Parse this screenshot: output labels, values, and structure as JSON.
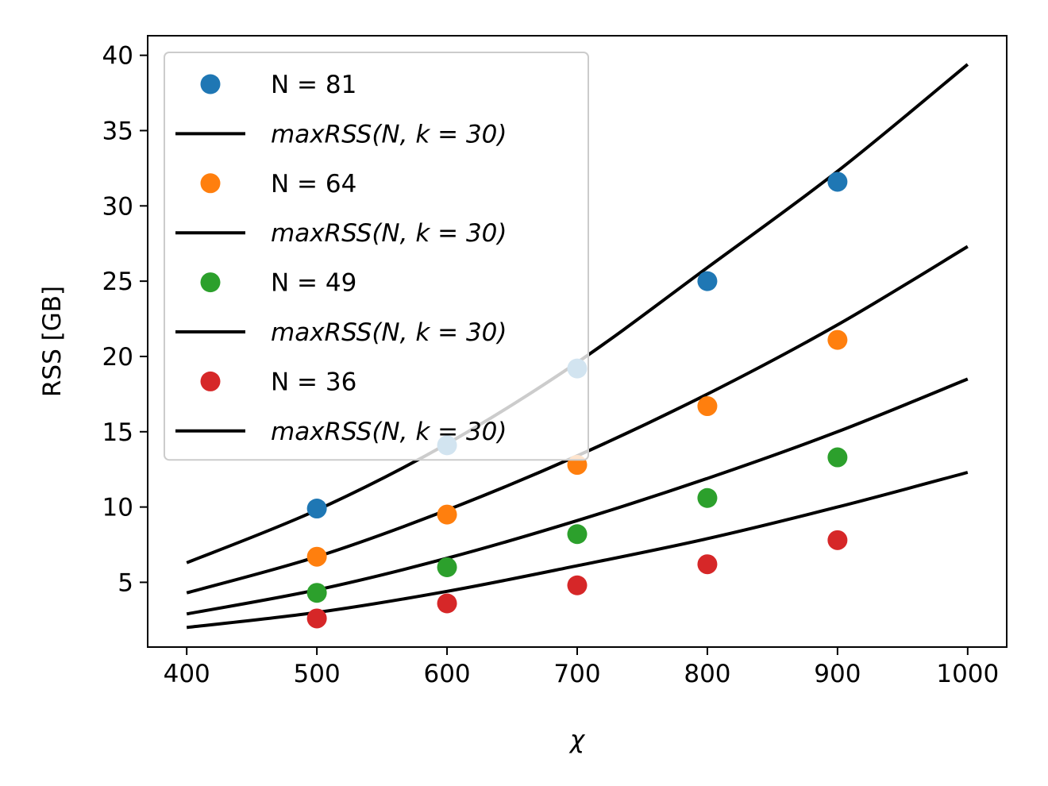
{
  "chart_data": {
    "type": "scatter",
    "xlabel": "χ",
    "ylabel": "RSS [GB]",
    "xlim": [
      370,
      1030
    ],
    "ylim": [
      0.7,
      41.3
    ],
    "xticks": [
      400,
      500,
      600,
      700,
      800,
      900,
      1000
    ],
    "yticks": [
      5,
      10,
      15,
      20,
      25,
      30,
      35,
      40
    ],
    "grid": false,
    "legend_position": "upper-left",
    "series": [
      {
        "name": "N = 81",
        "color": "#1f77b4",
        "points": [
          [
            500,
            9.9
          ],
          [
            600,
            14.1
          ],
          [
            700,
            19.2
          ],
          [
            800,
            25.0
          ],
          [
            900,
            31.6
          ]
        ],
        "fit_label": "maxRSS(N, k = 30)",
        "fit": [
          [
            400,
            6.3
          ],
          [
            500,
            9.8
          ],
          [
            600,
            14.2
          ],
          [
            700,
            19.6
          ],
          [
            800,
            25.9
          ],
          [
            900,
            32.3
          ],
          [
            1000,
            39.4
          ]
        ]
      },
      {
        "name": "N = 64",
        "color": "#ff7f0e",
        "points": [
          [
            500,
            6.7
          ],
          [
            600,
            9.5
          ],
          [
            700,
            12.8
          ],
          [
            800,
            16.7
          ],
          [
            900,
            21.1
          ]
        ],
        "fit_label": "maxRSS(N, k = 30)",
        "fit": [
          [
            400,
            4.3
          ],
          [
            500,
            6.7
          ],
          [
            600,
            9.8
          ],
          [
            700,
            13.4
          ],
          [
            800,
            17.5
          ],
          [
            900,
            22.1
          ],
          [
            1000,
            27.3
          ]
        ]
      },
      {
        "name": "N = 49",
        "color": "#2ca02c",
        "points": [
          [
            500,
            4.3
          ],
          [
            600,
            6.0
          ],
          [
            700,
            8.2
          ],
          [
            800,
            10.6
          ],
          [
            900,
            13.3
          ]
        ],
        "fit_label": "maxRSS(N, k = 30)",
        "fit": [
          [
            400,
            2.9
          ],
          [
            500,
            4.5
          ],
          [
            600,
            6.6
          ],
          [
            700,
            9.1
          ],
          [
            800,
            11.9
          ],
          [
            900,
            15.0
          ],
          [
            1000,
            18.5
          ]
        ]
      },
      {
        "name": "N = 36",
        "color": "#d62728",
        "points": [
          [
            500,
            2.6
          ],
          [
            600,
            3.6
          ],
          [
            700,
            4.8
          ],
          [
            800,
            6.2
          ],
          [
            900,
            7.8
          ]
        ],
        "fit_label": "maxRSS(N, k = 30)",
        "fit": [
          [
            400,
            2.0
          ],
          [
            500,
            3.0
          ],
          [
            600,
            4.4
          ],
          [
            700,
            6.1
          ],
          [
            800,
            7.9
          ],
          [
            900,
            10.0
          ],
          [
            1000,
            12.3
          ]
        ]
      }
    ]
  }
}
